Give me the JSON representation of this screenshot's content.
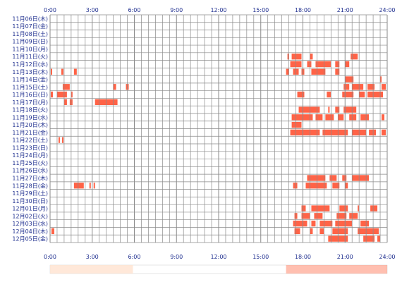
{
  "chart_data": {
    "type": "heatmap",
    "title": "",
    "xlabel": "",
    "ylabel": "",
    "x_range_hours": [
      0,
      24
    ],
    "x_ticks": [
      "0:00",
      "3:00",
      "6:00",
      "9:00",
      "12:00",
      "15:00",
      "18:00",
      "21:00",
      "24:00"
    ],
    "grid": true,
    "colors": {
      "activity": "#ff6347",
      "activity_light": "#ff9a6a",
      "grid": "#8a8a8a",
      "summary_light": "#ffe2cf",
      "summary_dark": "#ff8a70",
      "label": "#1f2f8f"
    },
    "rows": [
      {
        "label": "11月06日(木)",
        "segments": []
      },
      {
        "label": "11月07日(金)",
        "segments": []
      },
      {
        "label": "11月08日(土)",
        "segments": []
      },
      {
        "label": "11月09日(日)",
        "segments": []
      },
      {
        "label": "11月10日(月)",
        "segments": []
      },
      {
        "label": "11月11日(火)",
        "segments": [
          [
            16.9,
            17.0
          ],
          [
            17.2,
            17.9
          ],
          [
            18.5,
            18.7
          ],
          [
            21.4,
            21.9
          ]
        ]
      },
      {
        "label": "11月12日(水)",
        "segments": [
          [
            17.1,
            17.9
          ],
          [
            18.3,
            18.6
          ],
          [
            18.9,
            20.0
          ],
          [
            20.3,
            20.6
          ],
          [
            21.0,
            21.3
          ]
        ]
      },
      {
        "label": "11月13日(木)",
        "segments": [
          [
            0.05,
            0.15
          ],
          [
            0.8,
            0.95
          ],
          [
            1.7,
            1.9
          ],
          [
            16.8,
            17.0
          ],
          [
            17.3,
            17.7
          ],
          [
            17.9,
            18.1
          ],
          [
            18.6,
            19.6
          ],
          [
            20.3,
            20.6
          ]
        ]
      },
      {
        "label": "11月14日(金)",
        "segments": [
          [
            21.0,
            21.6
          ],
          [
            23.5,
            23.6
          ]
        ]
      },
      {
        "label": "11月15日(土)",
        "segments": [
          [
            0.9,
            1.4
          ],
          [
            4.5,
            4.7
          ],
          [
            5.4,
            5.6
          ],
          [
            20.9,
            21.3
          ],
          [
            21.5,
            22.3
          ],
          [
            22.6,
            23.1
          ],
          [
            23.6,
            23.9
          ]
        ]
      },
      {
        "label": "11月16日(日)",
        "segments": [
          [
            0.05,
            0.2
          ],
          [
            0.5,
            1.2
          ],
          [
            1.5,
            1.6
          ],
          [
            17.6,
            18.1
          ],
          [
            19.7,
            20.0
          ],
          [
            20.8,
            21.6
          ],
          [
            22.0,
            22.4
          ],
          [
            22.6,
            23.7
          ]
        ]
      },
      {
        "label": "11月17日(月)",
        "segments": [
          [
            1.0,
            1.2
          ],
          [
            1.4,
            1.6
          ],
          [
            3.2,
            4.8
          ]
        ]
      },
      {
        "label": "11月18日(火)",
        "segments": [
          [
            17.7,
            19.2
          ],
          [
            19.8,
            19.9
          ],
          [
            20.3,
            20.6
          ],
          [
            20.9,
            21.8
          ]
        ]
      },
      {
        "label": "11月19日(水)",
        "segments": [
          [
            17.2,
            18.7
          ],
          [
            18.9,
            19.4
          ],
          [
            19.6,
            20.2
          ],
          [
            20.5,
            20.9
          ],
          [
            21.3,
            21.8
          ],
          [
            22.1,
            22.7
          ],
          [
            23.6,
            23.8
          ]
        ]
      },
      {
        "label": "11月20日(木)",
        "segments": [
          [
            17.2,
            17.9
          ]
        ]
      },
      {
        "label": "11月21日(金)",
        "segments": [
          [
            17.1,
            19.2
          ],
          [
            19.4,
            21.2
          ],
          [
            21.5,
            22.5
          ],
          [
            22.7,
            23.2
          ],
          [
            23.6,
            23.9
          ]
        ]
      },
      {
        "label": "11月22日(土)",
        "segments": [
          [
            0.6,
            0.7
          ],
          [
            0.85,
            0.95
          ]
        ]
      },
      {
        "label": "11月23日(日)",
        "segments": []
      },
      {
        "label": "11月24日(月)",
        "segments": []
      },
      {
        "label": "11月25日(火)",
        "segments": []
      },
      {
        "label": "11月26日(水)",
        "segments": []
      },
      {
        "label": "11月27日(木)",
        "segments": [
          [
            18.3,
            19.6
          ],
          [
            19.9,
            20.4
          ],
          [
            20.8,
            21.1
          ],
          [
            21.5,
            22.7
          ]
        ]
      },
      {
        "label": "11月28日(金)",
        "segments": [
          [
            1.7,
            2.4
          ],
          [
            2.8,
            2.9
          ],
          [
            3.1,
            3.2
          ],
          [
            17.3,
            17.6
          ],
          [
            18.2,
            19.7
          ],
          [
            20.1,
            20.6
          ],
          [
            21.0,
            21.2
          ]
        ]
      },
      {
        "label": "11月29日(土)",
        "segments": []
      },
      {
        "label": "11月30日(日)",
        "segments": []
      },
      {
        "label": "12月01日(月)",
        "segments": [
          [
            17.9,
            18.2
          ],
          [
            18.6,
            19.9
          ],
          [
            20.6,
            21.2
          ],
          [
            21.9,
            22.0
          ],
          [
            22.8,
            23.3
          ]
        ]
      },
      {
        "label": "12月02日(火)",
        "segments": [
          [
            17.4,
            17.6
          ],
          [
            17.9,
            18.5
          ],
          [
            18.8,
            19.4
          ],
          [
            20.4,
            21.1
          ],
          [
            21.3,
            21.9
          ]
        ]
      },
      {
        "label": "12月03日(水)",
        "segments": [
          [
            17.3,
            18.3
          ],
          [
            18.6,
            18.9
          ],
          [
            19.2,
            20.1
          ],
          [
            20.3,
            21.5
          ],
          [
            22.1,
            22.7
          ]
        ]
      },
      {
        "label": "12月04日(木)",
        "segments": [
          [
            0.1,
            0.3
          ],
          [
            17.4,
            17.8
          ],
          [
            18.5,
            18.7
          ],
          [
            19.2,
            19.5
          ],
          [
            20.1,
            21.2
          ],
          [
            21.9,
            23.4
          ]
        ]
      },
      {
        "label": "12月05日(金)",
        "segments": [
          [
            19.8,
            21.2
          ],
          [
            22.3,
            23.1
          ],
          [
            23.3,
            23.5
          ]
        ]
      }
    ],
    "summary_bands": [
      [
        0.0,
        5.9,
        "light"
      ],
      [
        16.8,
        24.0,
        "dark"
      ]
    ]
  }
}
